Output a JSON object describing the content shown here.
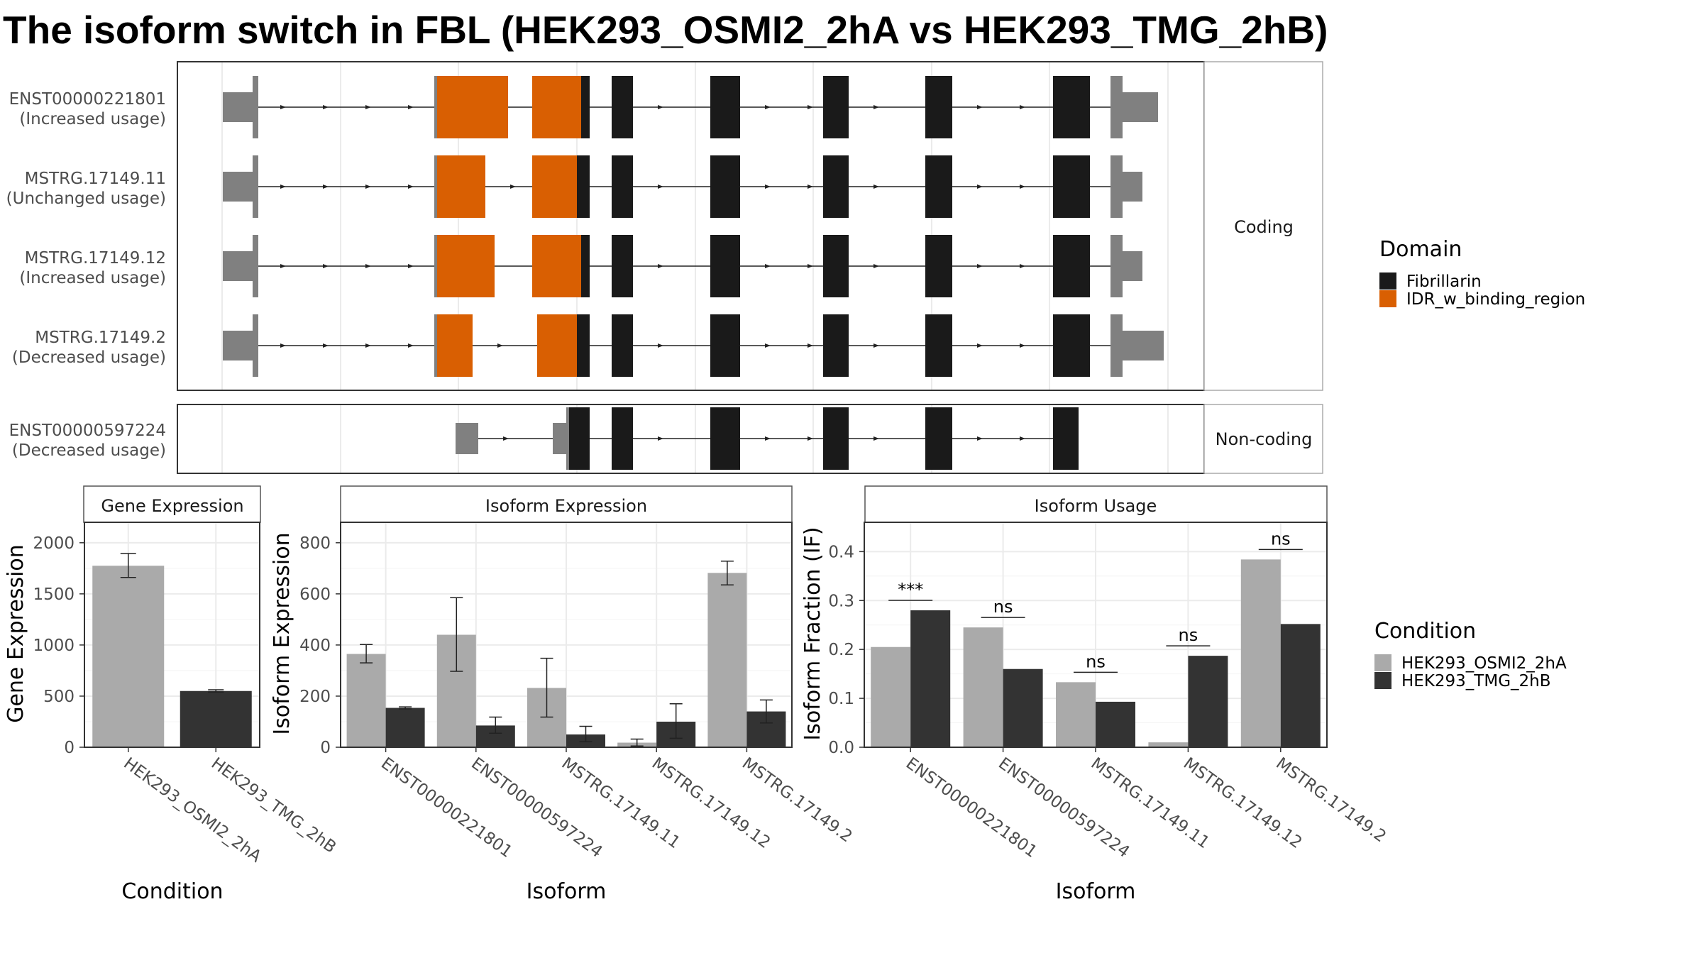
{
  "title": "The isoform switch in FBL (HEK293_OSMI2_2hA vs HEK293_TMG_2hB)",
  "colors": {
    "fibrillarin": "#1a1a1a",
    "idr": "#d95f02",
    "utr": "#808080",
    "cond_a": "#aaaaaa",
    "cond_b": "#333333"
  },
  "legends": {
    "domain": {
      "title": "Domain",
      "items": [
        "Fibrillarin",
        "IDR_w_binding_region"
      ]
    },
    "condition": {
      "title": "Condition",
      "items": [
        "HEK293_OSMI2_2hA",
        "HEK293_TMG_2hB"
      ]
    }
  },
  "transcripts": {
    "facets": [
      "Coding",
      "Non-coding"
    ],
    "rows": [
      {
        "id": "ENST00000221801",
        "usage": "(Increased usage)",
        "facet": "Coding"
      },
      {
        "id": "MSTRG.17149.11",
        "usage": "(Unchanged usage)",
        "facet": "Coding"
      },
      {
        "id": "MSTRG.17149.12",
        "usage": "(Increased usage)",
        "facet": "Coding"
      },
      {
        "id": "MSTRG.17149.2",
        "usage": "(Decreased usage)",
        "facet": "Coding"
      },
      {
        "id": "ENST00000597224",
        "usage": "(Decreased usage)",
        "facet": "Non-coding"
      }
    ]
  },
  "chart_data": [
    {
      "type": "bar",
      "title": "Gene Expression",
      "xlabel": "Condition",
      "ylabel": "Gene Expression",
      "categories": [
        "HEK293_OSMI2_2hA",
        "HEK293_TMG_2hB"
      ],
      "values": [
        1775,
        550
      ],
      "errors": [
        [
          1660,
          1895
        ],
        [
          540,
          562
        ]
      ],
      "ylim": [
        0,
        2200
      ],
      "yticks": [
        0,
        500,
        1000,
        1500,
        2000
      ]
    },
    {
      "type": "bar",
      "title": "Isoform Expression",
      "xlabel": "Isoform",
      "ylabel": "Isoform Expression",
      "categories": [
        "ENST00000221801",
        "ENST00000597224",
        "MSTRG.17149.11",
        "MSTRG.17149.12",
        "MSTRG.17149.2"
      ],
      "series": [
        {
          "name": "HEK293_OSMI2_2hA",
          "values": [
            365,
            440,
            232,
            18,
            682
          ],
          "errors": [
            [
              330,
              402
            ],
            [
              297,
              585
            ],
            [
              118,
              348
            ],
            [
              5,
              32
            ],
            [
              635,
              728
            ]
          ]
        },
        {
          "name": "HEK293_TMG_2hB",
          "values": [
            154,
            85,
            50,
            100,
            140
          ],
          "errors": [
            [
              150,
              158
            ],
            [
              55,
              118
            ],
            [
              22,
              82
            ],
            [
              35,
              170
            ],
            [
              95,
              185
            ]
          ]
        }
      ],
      "ylim": [
        0,
        880
      ],
      "yticks": [
        0,
        200,
        400,
        600,
        800
      ]
    },
    {
      "type": "bar",
      "title": "Isoform Usage",
      "xlabel": "Isoform",
      "ylabel": "Isoform Fraction (IF)",
      "categories": [
        "ENST00000221801",
        "ENST00000597224",
        "MSTRG.17149.11",
        "MSTRG.17149.12",
        "MSTRG.17149.2"
      ],
      "series": [
        {
          "name": "HEK293_OSMI2_2hA",
          "values": [
            0.205,
            0.245,
            0.133,
            0.01,
            0.384
          ]
        },
        {
          "name": "HEK293_TMG_2hB",
          "values": [
            0.28,
            0.16,
            0.093,
            0.187,
            0.252
          ]
        }
      ],
      "significance": [
        "***",
        "ns",
        "ns",
        "ns",
        "ns"
      ],
      "ylim": [
        0,
        0.46
      ],
      "yticks": [
        "0.0",
        "0.1",
        "0.2",
        "0.3",
        "0.4"
      ]
    }
  ]
}
